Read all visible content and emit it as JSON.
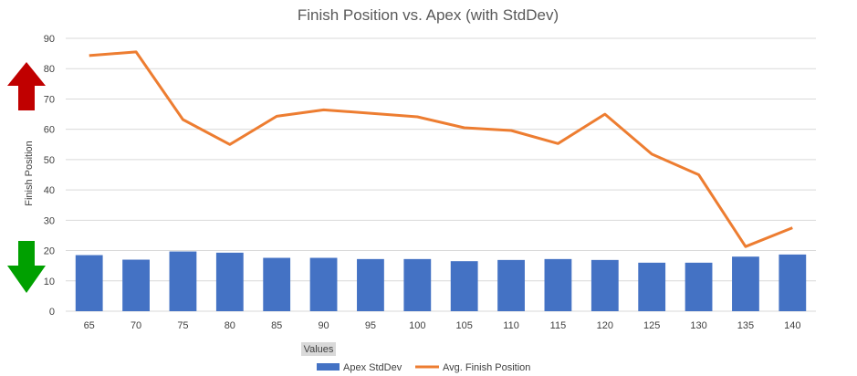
{
  "chart_data": {
    "type": "bar+line",
    "title": "Finish Position vs. Apex (with StdDev)",
    "ylabel": "Finish Position",
    "xlabel": "",
    "field_button": "Values",
    "ylim": [
      0,
      90
    ],
    "yticks": [
      0,
      10,
      20,
      30,
      40,
      50,
      60,
      70,
      80,
      90
    ],
    "categories": [
      "65",
      "70",
      "75",
      "80",
      "85",
      "90",
      "95",
      "100",
      "105",
      "110",
      "115",
      "120",
      "125",
      "130",
      "135",
      "140"
    ],
    "series": [
      {
        "name": "Apex StdDev",
        "kind": "bar",
        "color": "#4472c4",
        "values": [
          18.5,
          17,
          19.7,
          19.3,
          17.6,
          17.6,
          17.2,
          17.2,
          16.5,
          16.9,
          17.2,
          16.9,
          16,
          16,
          18,
          18.7
        ]
      },
      {
        "name": "Avg. Finish Position",
        "kind": "line",
        "color": "#ed7d31",
        "values": [
          84.3,
          85.5,
          63.2,
          55,
          64.3,
          66.4,
          65.3,
          64.1,
          60.5,
          59.6,
          55.3,
          65,
          51.8,
          45,
          21.3,
          27.5
        ]
      }
    ],
    "legend_position": "bottom",
    "grid": true,
    "indicators": [
      {
        "name": "up-arrow",
        "color": "#c00000"
      },
      {
        "name": "down-arrow",
        "color": "#00a000"
      }
    ]
  }
}
